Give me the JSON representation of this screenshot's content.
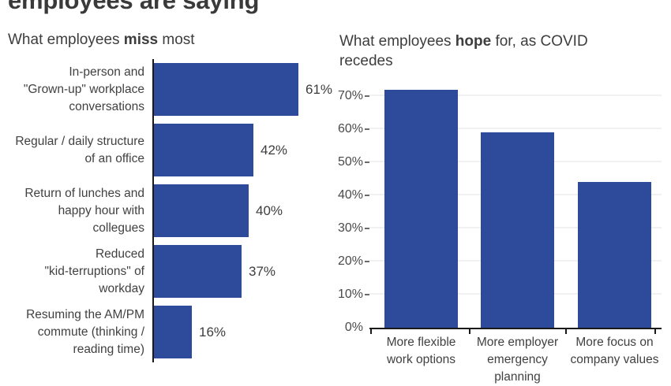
{
  "page": {
    "title": "employees are saying"
  },
  "chart_data": [
    {
      "type": "bar",
      "orientation": "horizontal",
      "title": "What employees miss most",
      "title_parts": {
        "prefix": "What employees ",
        "bold": "miss",
        "suffix": " most"
      },
      "categories": [
        "In-person and\n\"Grown-up\" workplace\nconversations",
        "Regular / daily structure\nof an office",
        "Return of lunches and\nhappy hour with\ncollegues",
        "Reduced\n\"kid-terruptions\" of\nworkday",
        "Resuming the AM/PM\ncommute (thinking /\nreading time)"
      ],
      "values": [
        61,
        42,
        40,
        37,
        16
      ],
      "data_labels": [
        "61%",
        "42%",
        "40%",
        "37%",
        "16%"
      ],
      "xlim": [
        0,
        65
      ],
      "grid": false,
      "legend": "none",
      "bar_color": "#2e4a9b"
    },
    {
      "type": "bar",
      "orientation": "vertical",
      "title": "What employees hope for, as COVID recedes",
      "title_parts": {
        "prefix": "What employees ",
        "bold": "hope",
        "suffix": " for, as COVID recedes"
      },
      "categories": [
        "More flexible\nwork options",
        "More employer\nemergency\nplanning",
        "More focus on\ncompany values"
      ],
      "values": [
        72,
        59,
        44
      ],
      "y_ticks": [
        "0%",
        "10%",
        "20%",
        "30%",
        "40%",
        "50%",
        "60%",
        "70%"
      ],
      "ylim": [
        0,
        75
      ],
      "grid": true,
      "legend": "none",
      "bar_color": "#2e4a9b"
    }
  ],
  "colors": {
    "bar": "#2e4a9b",
    "axis": "#1a1a1a",
    "gridline": "#f2f0f2",
    "title_text": "#3a3a3a",
    "label_text": "#414141",
    "tick_text": "#4a4a4a"
  }
}
